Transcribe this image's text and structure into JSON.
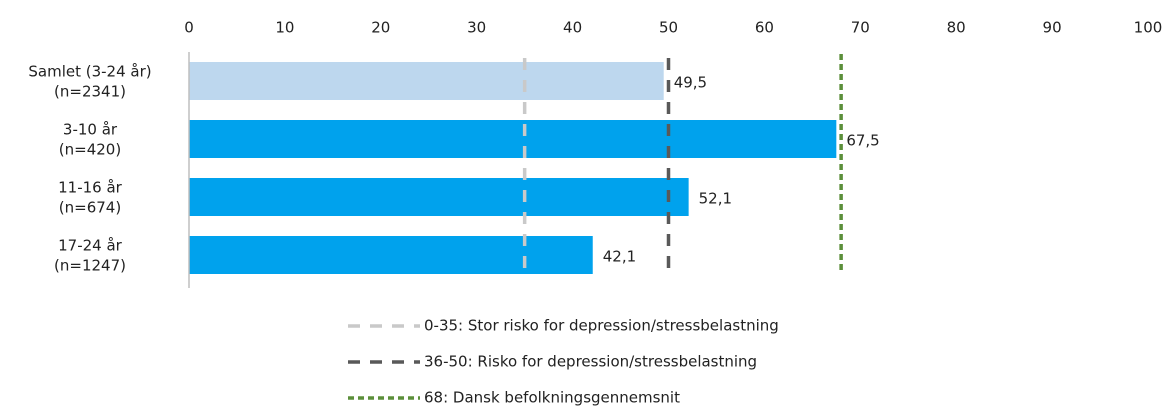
{
  "chart_data": {
    "type": "hbar",
    "categories": [
      [
        "Samlet (3-24 år)",
        "(n=2341)"
      ],
      [
        "3-10 år",
        "(n=420)"
      ],
      [
        "11-16 år",
        "(n=674)"
      ],
      [
        "17-24 år",
        "(n=1247)"
      ]
    ],
    "values": [
      49.5,
      67.5,
      52.1,
      42.1
    ],
    "value_labels": [
      "49,5",
      "67,5",
      "52,1",
      "42,1"
    ],
    "colors": [
      "#bdd7ee",
      "#00a2ed",
      "#00a2ed",
      "#00a2ed"
    ],
    "xlim": [
      0,
      100
    ],
    "xticks": [
      0,
      10,
      20,
      30,
      40,
      50,
      60,
      70,
      80,
      90,
      100
    ],
    "reference_lines": [
      {
        "value": 35,
        "label": "0-35: Stor risko for depression/stressbelastning",
        "color": "#c9c9c9"
      },
      {
        "value": 50,
        "label": "36-50: Risko for depression/stressbelastning",
        "color": "#595959"
      },
      {
        "value": 68,
        "label": "68: Dansk befolkningsgennemsnit",
        "color": "#5b8f3a"
      }
    ]
  }
}
